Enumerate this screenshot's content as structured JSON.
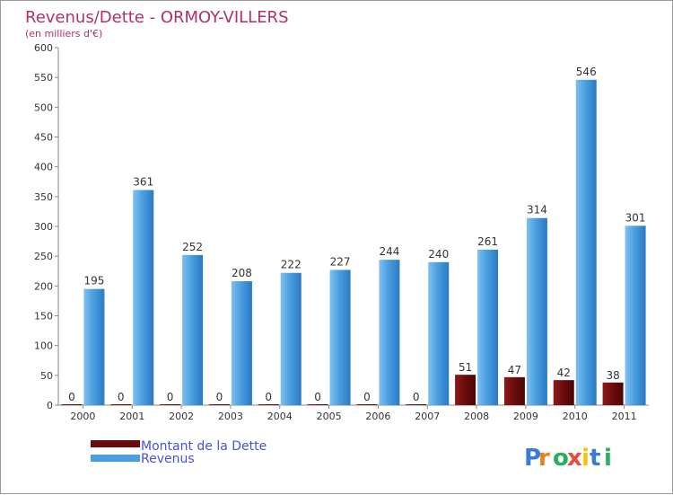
{
  "chart_data": {
    "type": "bar",
    "title": "Revenus/Dette - ORMOY-VILLERS",
    "subtitle": "(en milliers d'€)",
    "categories": [
      "2000",
      "2001",
      "2002",
      "2003",
      "2004",
      "2005",
      "2006",
      "2007",
      "2008",
      "2009",
      "2010",
      "2011"
    ],
    "series": [
      {
        "name": "Montant de la Dette",
        "color": "#7a0e0e",
        "values": [
          0,
          0,
          0,
          0,
          0,
          0,
          0,
          0,
          51,
          47,
          42,
          38
        ]
      },
      {
        "name": "Revenus",
        "color": "#4a9fe0",
        "values": [
          195,
          361,
          252,
          208,
          222,
          227,
          244,
          240,
          261,
          314,
          546,
          301
        ]
      }
    ],
    "ylim": [
      0,
      600
    ],
    "yticks": [
      0,
      50,
      100,
      150,
      200,
      250,
      300,
      350,
      400,
      450,
      500,
      550,
      600
    ],
    "xlabel": "",
    "ylabel": "",
    "grid": false,
    "legend_position": "bottom-left",
    "title_color": "#b0306a",
    "legend_text_color": "#4a4fe0"
  },
  "logo": {
    "text": "Proxiti",
    "letters": [
      "P",
      "r",
      "o",
      "x",
      "i",
      "t",
      "i"
    ],
    "colors": [
      "#3a7bd5",
      "#e67e22",
      "#27ae60",
      "#e74c3c",
      "#f1c40f",
      "#3a7bd5",
      "#27ae60"
    ]
  }
}
